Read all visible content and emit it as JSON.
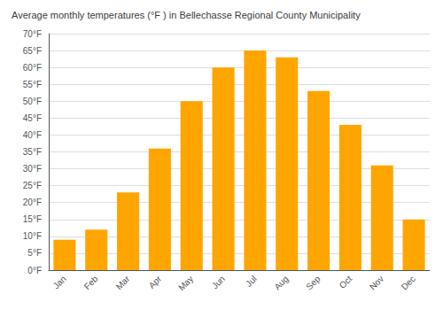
{
  "chart_data": {
    "type": "bar",
    "title": "Average monthly temperatures (°F ) in Bellechasse Regional County Municipality",
    "categories": [
      "Jan",
      "Feb",
      "Mar",
      "Apr",
      "May",
      "Jun",
      "Jul",
      "Aug",
      "Sep",
      "Oct",
      "Nov",
      "Dec"
    ],
    "values": [
      9,
      12,
      23,
      36,
      50,
      60,
      65,
      63,
      53,
      43,
      31,
      15
    ],
    "color": "#FFA500",
    "ylim": [
      0,
      70
    ],
    "yticks": [
      {
        "value": 0,
        "label": "0°F"
      },
      {
        "value": 5,
        "label": "5°F"
      },
      {
        "value": 10,
        "label": "10°F"
      },
      {
        "value": 15,
        "label": "15°F"
      },
      {
        "value": 20,
        "label": "20°F"
      },
      {
        "value": 25,
        "label": "25°F"
      },
      {
        "value": 30,
        "label": "30°F"
      },
      {
        "value": 35,
        "label": "35°F"
      },
      {
        "value": 40,
        "label": "40°F"
      },
      {
        "value": 45,
        "label": "45°F"
      },
      {
        "value": 50,
        "label": "50°F"
      },
      {
        "value": 55,
        "label": "55°F"
      },
      {
        "value": 60,
        "label": "60°F"
      },
      {
        "value": 65,
        "label": "65°F"
      },
      {
        "value": 70,
        "label": "70°F"
      }
    ],
    "grid": true
  }
}
